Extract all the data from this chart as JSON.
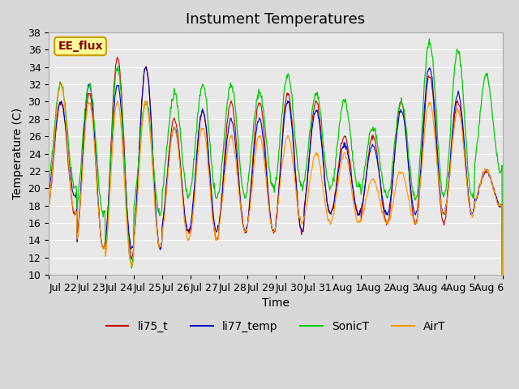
{
  "title": "Instument Temperatures",
  "xlabel": "Time",
  "ylabel": "Temperature (C)",
  "ylim": [
    10,
    38
  ],
  "yticks": [
    10,
    12,
    14,
    16,
    18,
    20,
    22,
    24,
    26,
    28,
    30,
    32,
    34,
    36,
    38
  ],
  "xtick_labels": [
    "Jul 22",
    "Jul 23",
    "Jul 24",
    "Jul 25",
    "Jul 26",
    "Jul 27",
    "Jul 28",
    "Jul 29",
    "Jul 30",
    "Jul 31",
    "Aug 1",
    "Aug 2",
    "Aug 3",
    "Aug 4",
    "Aug 5",
    "Aug 6"
  ],
  "series_colors": {
    "li75_t": "#cc0000",
    "li77_temp": "#0000cc",
    "SonicT": "#00cc00",
    "AirT": "#ff9900"
  },
  "annotation_text": "EE_flux",
  "annotation_bg": "#ffff99",
  "annotation_border": "#cc9900",
  "fig_bg": "#d8d8d8",
  "plot_bg": "#e8e8e8",
  "grid_color": "#ffffff",
  "title_fontsize": 13,
  "axis_label_fontsize": 10,
  "tick_fontsize": 9,
  "legend_fontsize": 10,
  "n_days": 16,
  "pts_per_day": 48,
  "li75_peaks": [
    30,
    31,
    35,
    34,
    28,
    29,
    30,
    30,
    31,
    30,
    26,
    26,
    30,
    33,
    30,
    22
  ],
  "li75_troughs": [
    17,
    13,
    12,
    13,
    15,
    14,
    15,
    15,
    15,
    17,
    17,
    16,
    16,
    16,
    17,
    18
  ],
  "li77_peaks": [
    30,
    32,
    32,
    34,
    27,
    29,
    28,
    28,
    30,
    29,
    25,
    25,
    29,
    34,
    31,
    22
  ],
  "li77_troughs": [
    19,
    13,
    13,
    13,
    15,
    15,
    15,
    15,
    15,
    17,
    17,
    17,
    17,
    17,
    17,
    18
  ],
  "sonic_peaks": [
    32,
    32,
    34,
    30,
    31,
    32,
    32,
    31,
    33,
    31,
    30,
    27,
    30,
    37,
    36,
    33
  ],
  "sonic_troughs": [
    20,
    17,
    11,
    17,
    19,
    19,
    19,
    20,
    20,
    20,
    20,
    19,
    19,
    19,
    19,
    22
  ],
  "air_peaks": [
    32,
    30,
    30,
    30,
    27,
    27,
    26,
    26,
    26,
    24,
    24,
    21,
    22,
    30,
    29,
    22
  ],
  "air_troughs": [
    17,
    13,
    11,
    13,
    14,
    14,
    15,
    15,
    16,
    16,
    16,
    16,
    16,
    17,
    17,
    18
  ]
}
